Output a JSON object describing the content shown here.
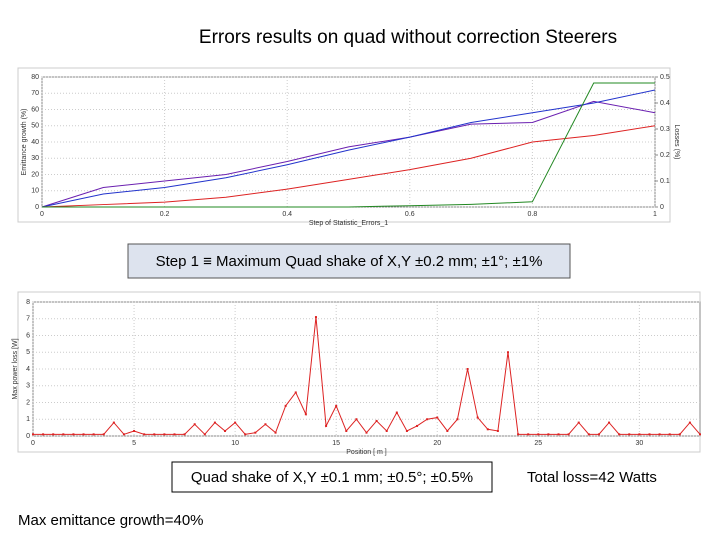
{
  "title": "Errors results on quad without correction Steerers",
  "step_box": "Step 1 ≡ Maximum Quad shake of X,Y ±0.2 mm; ±1°; ±1%",
  "shake_box": "Quad shake of X,Y ±0.1 mm; ±0.5°; ±0.5%",
  "total_loss": "Total loss=42 Watts",
  "max_emittance": "Max emittance growth=40%",
  "chart_data": [
    {
      "type": "line",
      "xlabel": "Step of Statistic_Errors_1",
      "ylabel": "Emittance growth (%)",
      "y2label": "Losses (%)",
      "x": [
        0,
        0.1,
        0.2,
        0.3,
        0.4,
        0.5,
        0.6,
        0.7,
        0.8,
        0.9,
        1
      ],
      "xlim": [
        0,
        1
      ],
      "xticks": [
        0,
        0.2,
        0.4,
        0.6,
        0.8,
        1
      ],
      "ylim": [
        0,
        80
      ],
      "yticks": [
        0,
        10,
        20,
        30,
        40,
        50,
        60,
        70,
        80
      ],
      "y2lim": [
        0,
        0.5
      ],
      "y2ticks": [
        0,
        0.1,
        0.2,
        0.3,
        0.4,
        0.5
      ],
      "grid": true,
      "series": [
        {
          "color": "#6a1fb0",
          "values": [
            0,
            12,
            16,
            20,
            28,
            37,
            43,
            51,
            52,
            65,
            58
          ]
        },
        {
          "color": "#2233cc",
          "values": [
            0,
            8,
            12,
            18,
            26,
            35,
            43,
            52,
            58,
            64,
            72
          ]
        },
        {
          "color": "#dd2222",
          "values": [
            0,
            1.5,
            3,
            6,
            11,
            17,
            23,
            30,
            40,
            44,
            50
          ]
        },
        {
          "color": "#228822",
          "axis": "y2",
          "values": [
            0,
            0,
            0,
            0,
            0,
            0,
            0.005,
            0.01,
            0.02,
            0.477,
            0.477
          ]
        }
      ]
    },
    {
      "type": "line",
      "xlabel": "Position [ m ]",
      "ylabel": "Max power loss [W]",
      "x": [
        0,
        0.5,
        1,
        1.5,
        2,
        2.5,
        3,
        3.5,
        4,
        4.5,
        5,
        5.5,
        6,
        6.5,
        7,
        7.5,
        8,
        8.5,
        9,
        9.5,
        10,
        10.5,
        11,
        11.5,
        12,
        12.5,
        13,
        13.5,
        14,
        14.5,
        15,
        15.5,
        16,
        16.5,
        17,
        17.5,
        18,
        18.5,
        19,
        19.5,
        20,
        20.5,
        21,
        21.5,
        22,
        22.5,
        23,
        23.5,
        24,
        24.5,
        25,
        25.5,
        26,
        26.5,
        27,
        27.5,
        28,
        28.5,
        29,
        29.5,
        30,
        30.5,
        31,
        31.5,
        32,
        32.5,
        33
      ],
      "xlim": [
        0,
        33
      ],
      "xticks": [
        0,
        5,
        10,
        15,
        20,
        25,
        30
      ],
      "ylim": [
        0,
        8
      ],
      "yticks": [
        0,
        1,
        2,
        3,
        4,
        5,
        6,
        7,
        8
      ],
      "grid": true,
      "markers": true,
      "series": [
        {
          "color": "#dd2222",
          "values": [
            0.1,
            0.1,
            0.1,
            0.1,
            0.1,
            0.1,
            0.1,
            0.1,
            0.8,
            0.1,
            0.3,
            0.1,
            0.1,
            0.1,
            0.1,
            0.1,
            0.7,
            0.1,
            0.8,
            0.3,
            0.8,
            0.1,
            0.2,
            0.7,
            0.2,
            1.8,
            2.6,
            1.3,
            7.1,
            0.6,
            1.8,
            0.3,
            1.0,
            0.2,
            0.9,
            0.3,
            1.4,
            0.3,
            0.6,
            1.0,
            1.1,
            0.3,
            1.0,
            4.0,
            1.1,
            0.4,
            0.3,
            5.0,
            0.1,
            0.1,
            0.1,
            0.1,
            0.1,
            0.1,
            0.8,
            0.1,
            0.1,
            0.8,
            0.1,
            0.1,
            0.1,
            0.1,
            0.1,
            0.1,
            0.1,
            0.8,
            0.1
          ]
        }
      ]
    }
  ]
}
